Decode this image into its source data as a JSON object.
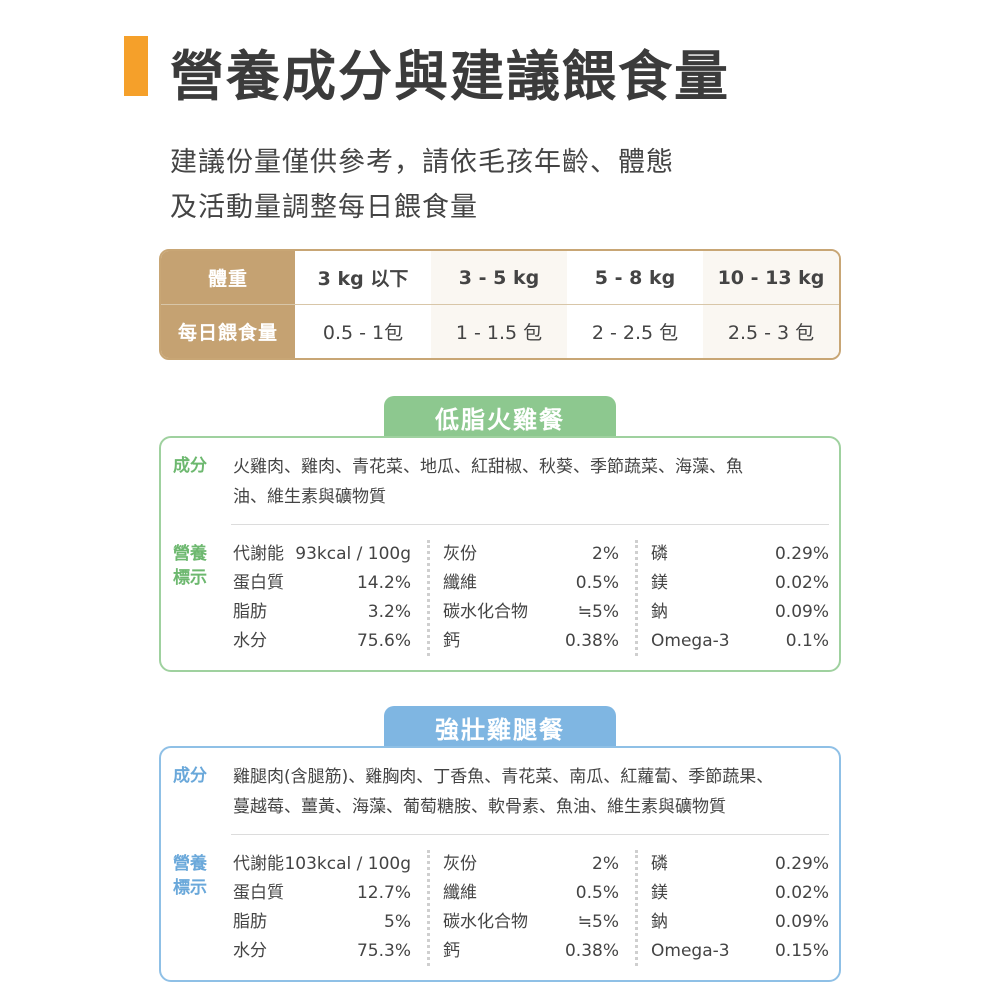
{
  "title": "營養成分與建議餵食量",
  "intro": [
    "建議份量僅供參考，請依毛孩年齡、體態",
    "及活動量調整每日餵食量"
  ],
  "feeding": {
    "weight_label": "體重",
    "amount_label": "每日餵食量",
    "weights": [
      "3 kg 以下",
      "3 - 5 kg",
      "5 - 8 kg",
      "10 - 13 kg"
    ],
    "amounts": [
      "0.5 - 1包",
      "1 - 1.5 包",
      "2 - 2.5 包",
      "2.5 - 3 包"
    ]
  },
  "products": [
    {
      "name": "低脂火雞餐",
      "ingredients_label": "成分",
      "ingredients": [
        "火雞肉、雞肉、青花菜、地瓜、紅甜椒、秋葵、季節蔬菜、海藻、魚",
        "油、維生素與礦物質"
      ],
      "nutrition_label": [
        "營養",
        "標示"
      ],
      "nutrition": [
        [
          [
            "代謝能",
            "93kcal / 100g"
          ],
          [
            "灰份",
            "2%"
          ],
          [
            "磷",
            "0.29%"
          ]
        ],
        [
          [
            "蛋白質",
            "14.2%"
          ],
          [
            "纖維",
            "0.5%"
          ],
          [
            "鎂",
            "0.02%"
          ]
        ],
        [
          [
            "脂肪",
            "3.2%"
          ],
          [
            "碳水化合物",
            "≒5%"
          ],
          [
            "鈉",
            "0.09%"
          ]
        ],
        [
          [
            "水分",
            "75.6%"
          ],
          [
            "鈣",
            "0.38%"
          ],
          [
            "Omega-3",
            "0.1%"
          ]
        ]
      ],
      "colors": {
        "accent": "#8dc88f"
      }
    },
    {
      "name": "強壯雞腿餐",
      "ingredients_label": "成分",
      "ingredients": [
        "雞腿肉(含腿筋)、雞胸肉、丁香魚、青花菜、南瓜、紅蘿蔔、季節蔬果、",
        "蔓越莓、薑黃、海藻、葡萄糖胺、軟骨素、魚油、維生素與礦物質"
      ],
      "nutrition_label": [
        "營養",
        "標示"
      ],
      "nutrition": [
        [
          [
            "代謝能",
            "103kcal / 100g"
          ],
          [
            "灰份",
            "2%"
          ],
          [
            "磷",
            "0.29%"
          ]
        ],
        [
          [
            "蛋白質",
            "12.7%"
          ],
          [
            "纖維",
            "0.5%"
          ],
          [
            "鎂",
            "0.02%"
          ]
        ],
        [
          [
            "脂肪",
            "5%"
          ],
          [
            "碳水化合物",
            "≒5%"
          ],
          [
            "鈉",
            "0.09%"
          ]
        ],
        [
          [
            "水分",
            "75.3%"
          ],
          [
            "鈣",
            "0.38%"
          ],
          [
            "Omega-3",
            "0.15%"
          ]
        ]
      ],
      "colors": {
        "accent": "#7fb6e2"
      }
    }
  ]
}
